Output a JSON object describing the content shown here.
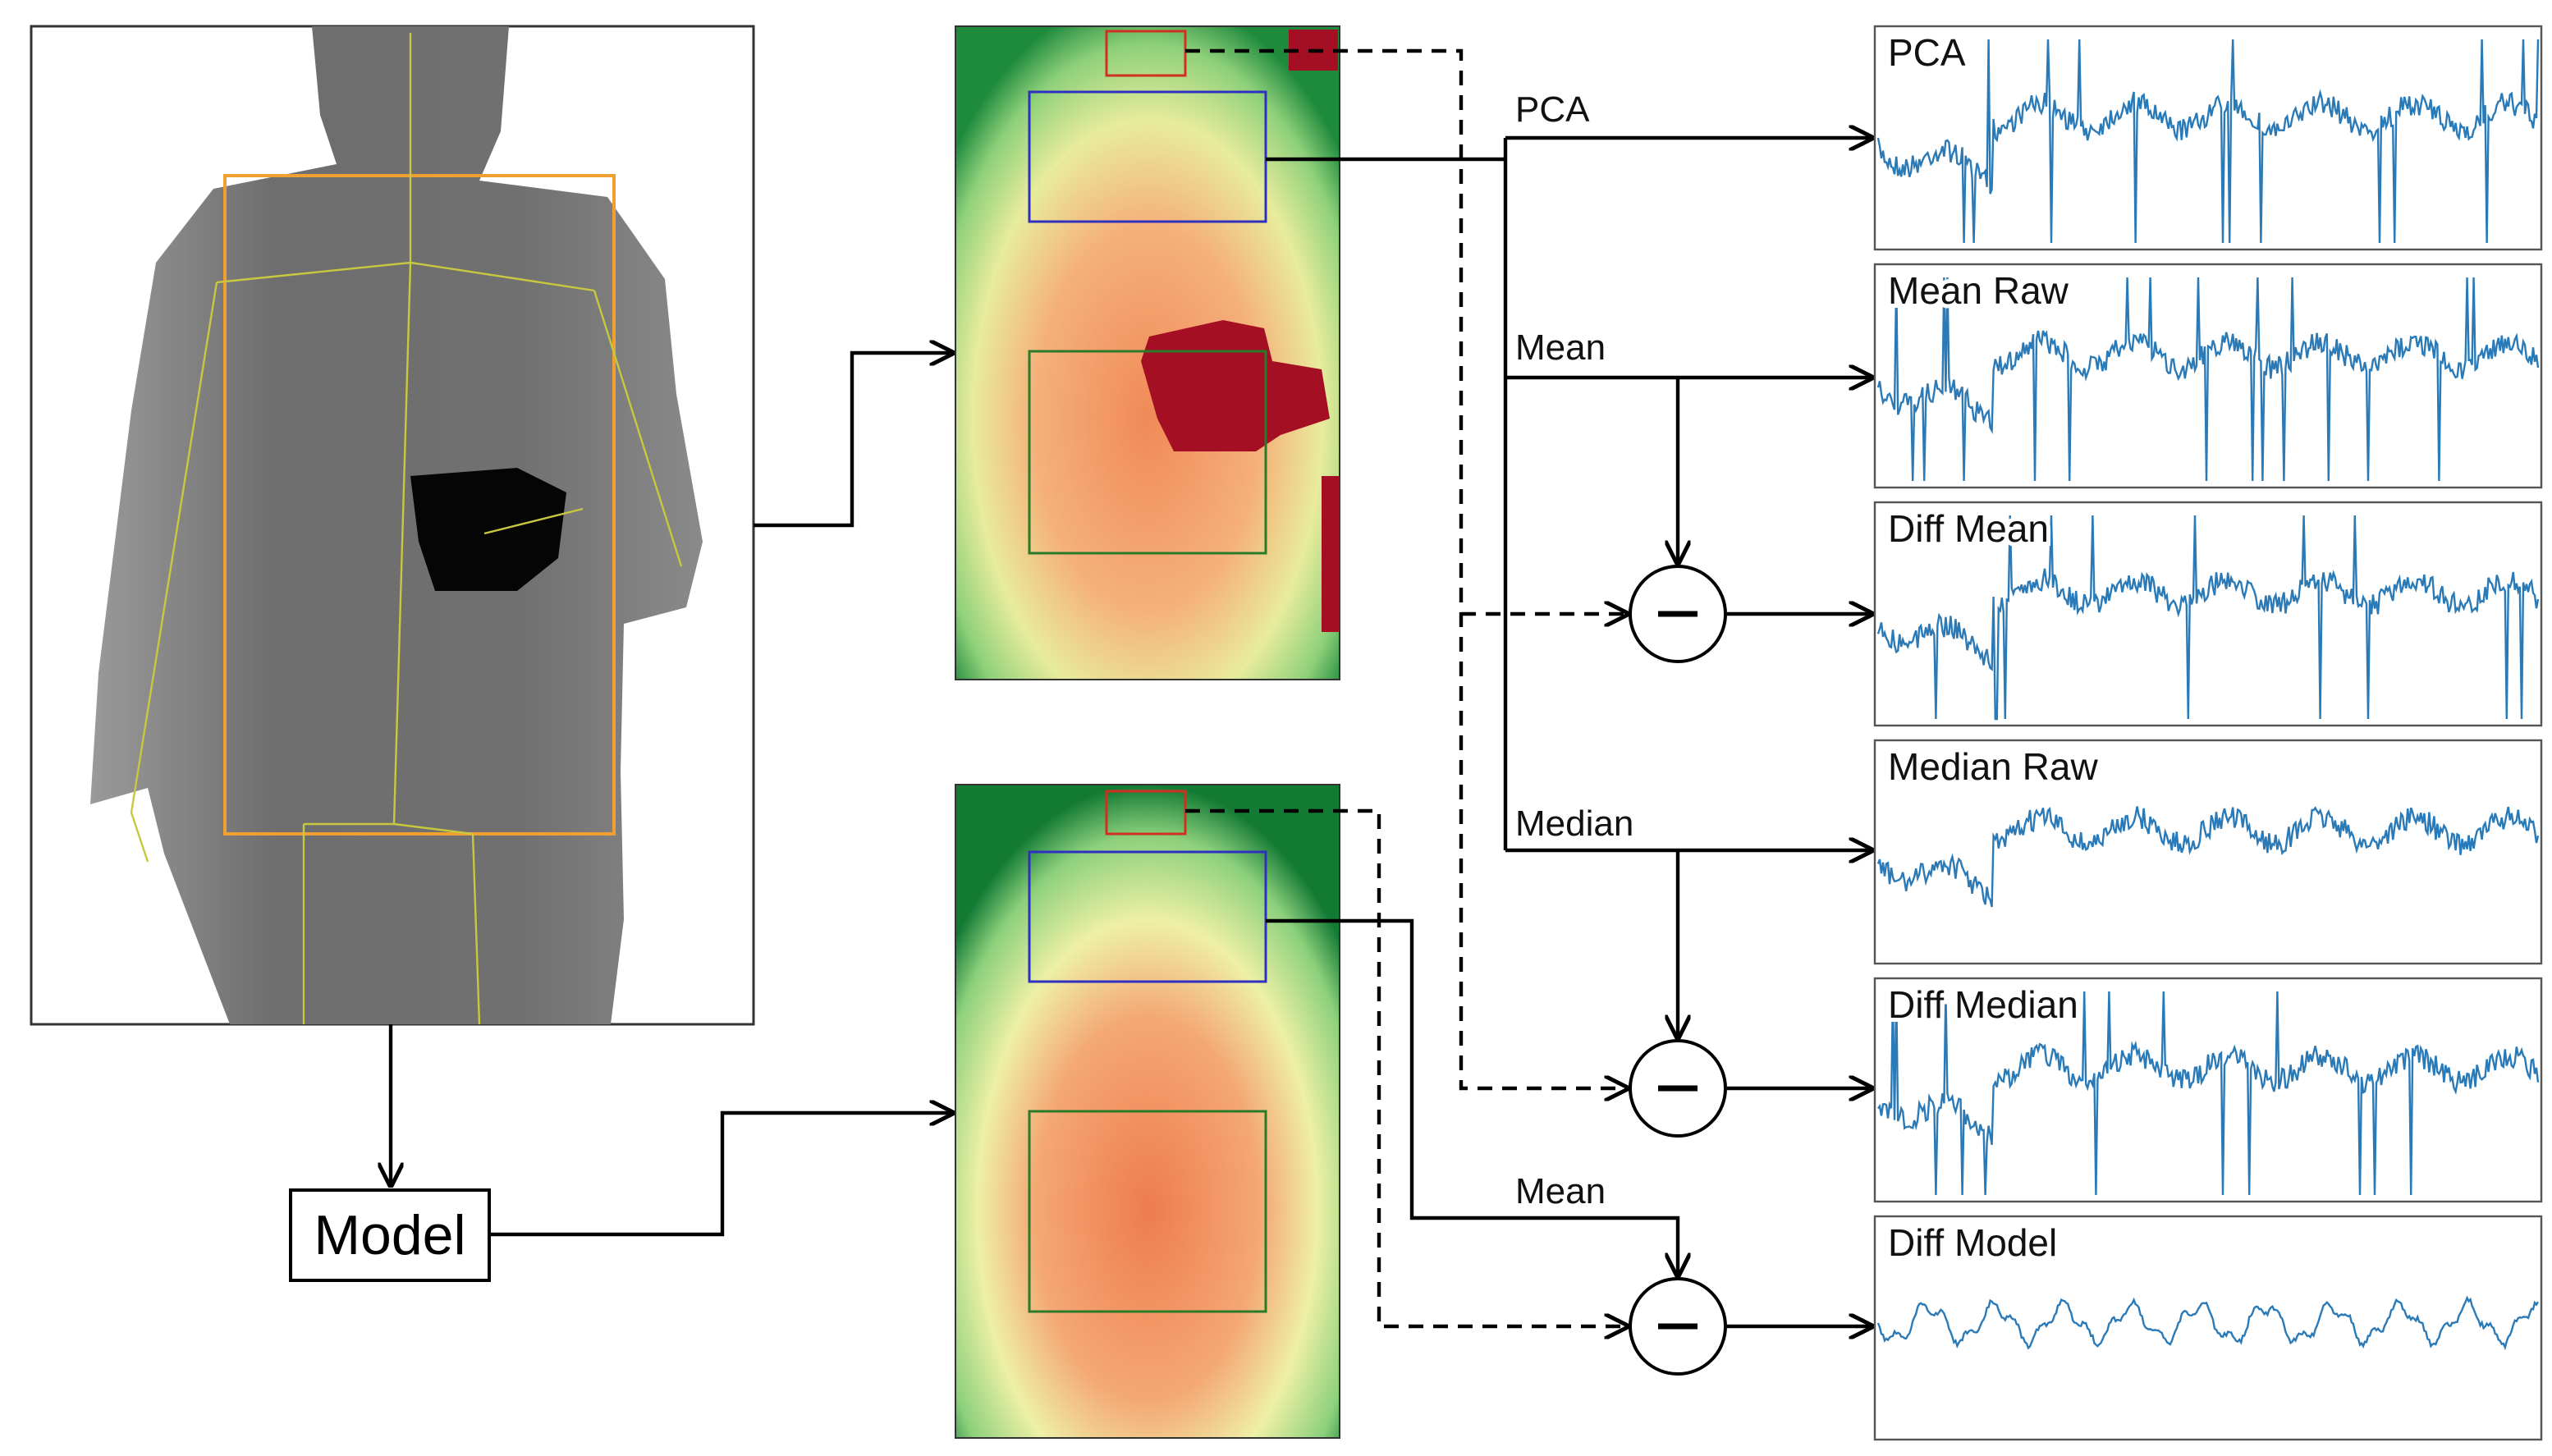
{
  "model_box": {
    "label": "Model"
  },
  "arrow_labels": [
    "PCA",
    "Mean",
    "Median",
    "Mean"
  ],
  "plots": [
    "PCA",
    "Mean Raw",
    "Diff Mean",
    "Median Raw",
    "Diff Median",
    "Diff Model"
  ]
}
